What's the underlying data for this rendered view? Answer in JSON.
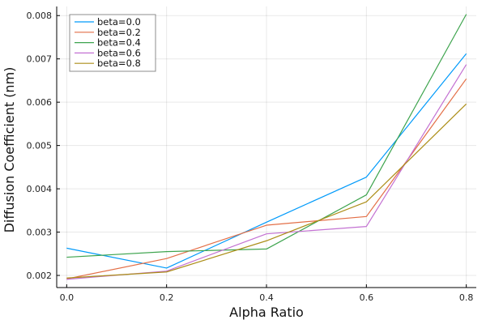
{
  "chart_data": {
    "type": "line",
    "title": "",
    "xlabel": "Alpha Ratio",
    "ylabel": "Diffusion Coefficient (nm)",
    "x": [
      0.0,
      0.2,
      0.4,
      0.6,
      0.8
    ],
    "xlim": [
      -0.02,
      0.82
    ],
    "ylim": [
      0.00172,
      0.00821
    ],
    "xticks": [
      0.0,
      0.2,
      0.4,
      0.6,
      0.8
    ],
    "xtick_labels": [
      "0.0",
      "0.2",
      "0.4",
      "0.6",
      "0.8"
    ],
    "yticks": [
      0.002,
      0.003,
      0.004,
      0.005,
      0.006,
      0.007,
      0.008
    ],
    "ytick_labels": [
      "0.002",
      "0.003",
      "0.004",
      "0.005",
      "0.006",
      "0.007",
      "0.008"
    ],
    "grid": true,
    "legend_position": "top-left",
    "series": [
      {
        "name": "beta=0.0",
        "color": "#009AFA",
        "values": [
          0.00263,
          0.00217,
          0.00323,
          0.00427,
          0.00712
        ]
      },
      {
        "name": "beta=0.2",
        "color": "#E36F47",
        "values": [
          0.00192,
          0.00239,
          0.00316,
          0.00336,
          0.00654
        ]
      },
      {
        "name": "beta=0.4",
        "color": "#3EA44E",
        "values": [
          0.00242,
          0.00255,
          0.00261,
          0.00386,
          0.00803
        ]
      },
      {
        "name": "beta=0.6",
        "color": "#C371D2",
        "values": [
          0.00191,
          0.0021,
          0.00296,
          0.00313,
          0.00687
        ]
      },
      {
        "name": "beta=0.8",
        "color": "#AC8E18",
        "values": [
          0.00194,
          0.00208,
          0.0028,
          0.0037,
          0.00596
        ]
      }
    ]
  }
}
